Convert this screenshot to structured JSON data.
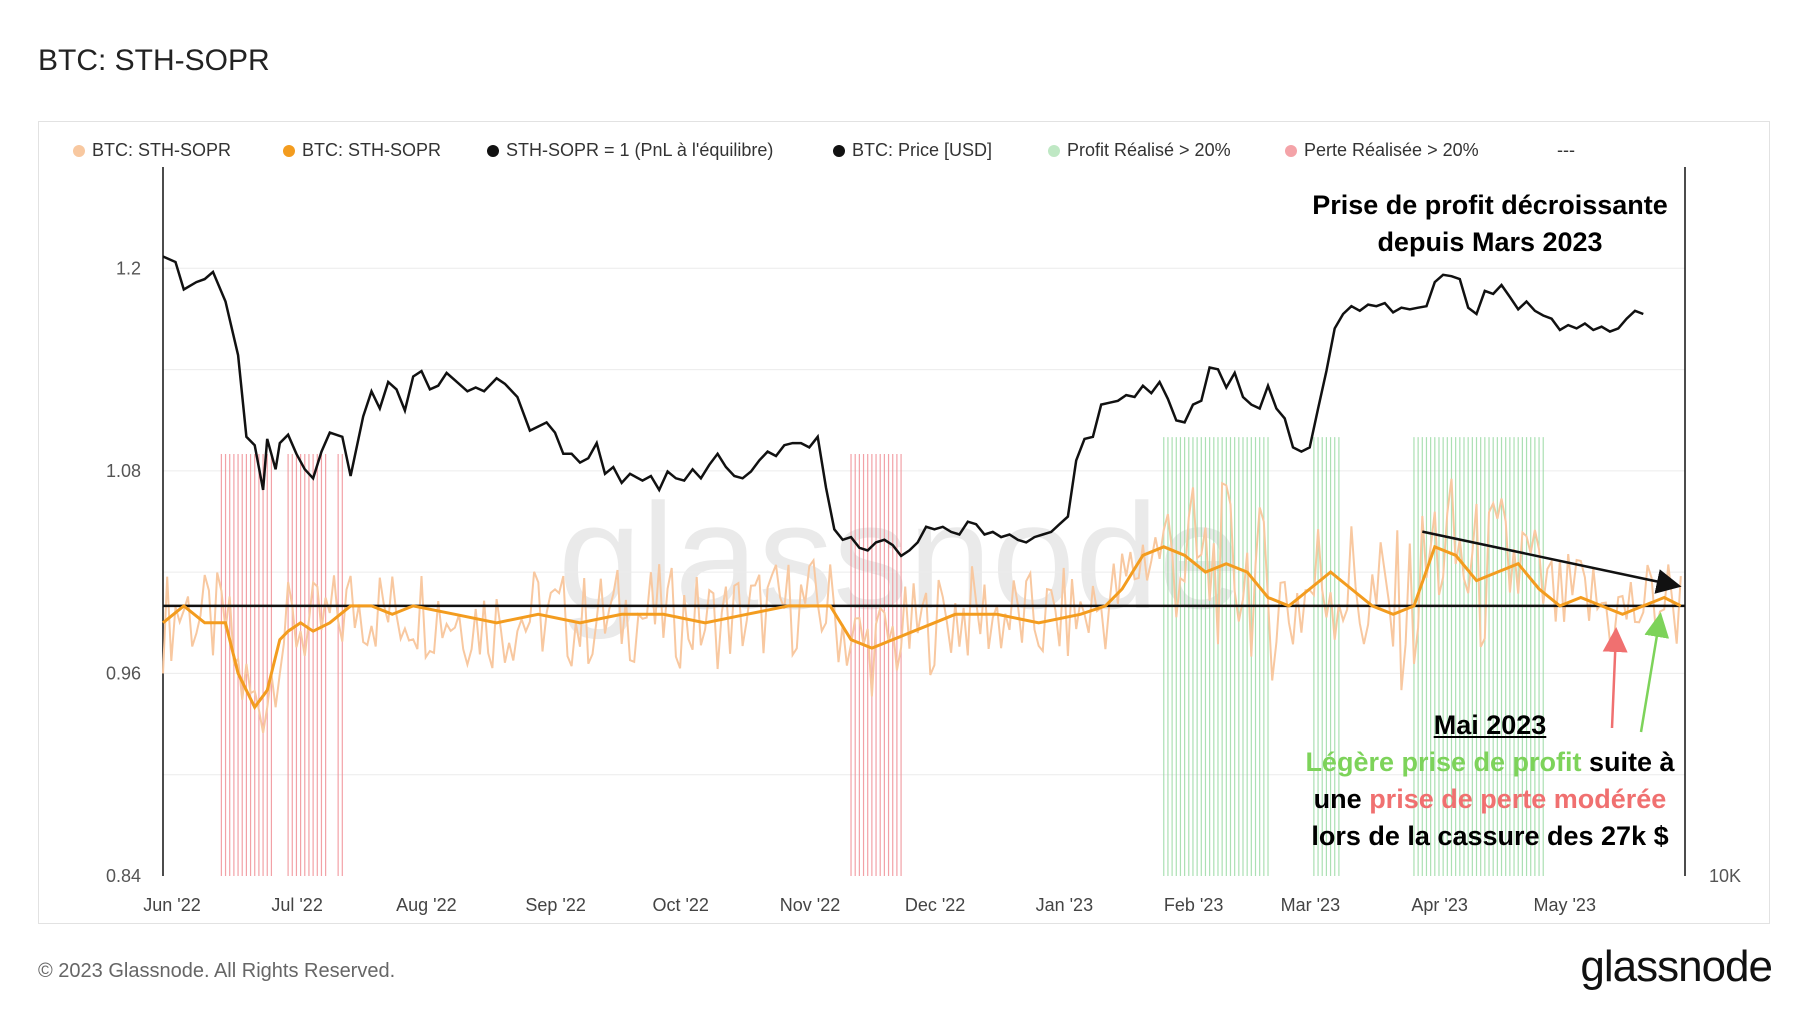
{
  "header": {
    "title": "BTC: STH-SOPR"
  },
  "legend": [
    {
      "label": "BTC: STH-SOPR",
      "color": "#f8c8a0"
    },
    {
      "label": "BTC: STH-SOPR",
      "color": "#f39c1f"
    },
    {
      "label": "STH-SOPR = 1 (PnL à l'équilibre)",
      "color": "#111111"
    },
    {
      "label": "BTC: Price [USD]",
      "color": "#111111"
    },
    {
      "label": "Profit Réalisé > 20%",
      "color": "#bfe8c4"
    },
    {
      "label": "Perte Réalisée > 20%",
      "color": "#f4a3a8"
    },
    {
      "label": "---",
      "color": ""
    }
  ],
  "annotations": {
    "top_line1": "Prise de profit décroissante",
    "top_line2": "depuis Mars 2023",
    "may_title": "Mai 2023",
    "line1_green": "Légère prise de profit",
    "line1_black": " suite à",
    "line2_black": "une ",
    "line2_red": "prise de perte modérée",
    "line3": "lors de la cassure des 27k $"
  },
  "colors": {
    "sopr_raw": "#f8c8a0",
    "sopr_smooth": "#f39c1f",
    "price": "#111111",
    "profit_band": "#8fd69a",
    "loss_band": "#f08a91",
    "annotation_green": "#7dd35a",
    "annotation_red": "#f07070"
  },
  "watermark": "glassnode",
  "footer": {
    "copyright": "© 2023 Glassnode. All Rights Reserved.",
    "logo": "glassnode"
  },
  "chart_data": {
    "type": "line",
    "title": "BTC: STH-SOPR",
    "y_left": {
      "ticks": [
        0.84,
        0.96,
        1.08,
        1.2
      ],
      "range": [
        0.84,
        1.26
      ]
    },
    "y_right": {
      "ticks_labeled": [
        "10K"
      ]
    },
    "x_labels": [
      "Jun '22",
      "Jul '22",
      "Aug '22",
      "Sep '22",
      "Oct '22",
      "Nov '22",
      "Dec '22",
      "Jan '23",
      "Feb '23",
      "Mar '23",
      "Apr '23",
      "May '23"
    ],
    "x_range_days": [
      0,
      365
    ],
    "reference_line": {
      "label": "STH-SOPR = 1 (PnL à l'équilibre)",
      "value": 1.0
    },
    "series": [
      {
        "name": "BTC: Price [USD] (approx, USD)",
        "day": [
          0,
          3,
          5,
          8,
          10,
          12,
          15,
          18,
          20,
          22,
          24,
          25,
          27,
          28,
          30,
          32,
          34,
          36,
          38,
          40,
          43,
          45,
          48,
          50,
          52,
          54,
          56,
          58,
          60,
          62,
          64,
          66,
          68,
          70,
          73,
          75,
          77,
          80,
          82,
          85,
          88,
          90,
          92,
          94,
          96,
          98,
          100,
          102,
          104,
          106,
          108,
          110,
          112,
          115,
          117,
          119,
          121,
          123,
          125,
          127,
          129,
          131,
          133,
          135,
          137,
          139,
          141,
          143,
          145,
          147,
          149,
          151,
          153,
          155,
          157,
          159,
          161,
          163,
          165,
          167,
          169,
          171,
          173,
          175,
          177,
          179,
          181,
          183,
          185,
          187,
          189,
          191,
          193,
          195,
          197,
          199,
          201,
          203,
          205,
          207,
          209,
          211,
          213,
          215,
          217,
          219,
          221,
          223,
          225,
          227,
          229,
          231,
          233,
          235,
          237,
          239,
          241,
          243,
          245,
          247,
          249,
          251,
          253,
          255,
          257,
          259,
          261,
          263,
          265,
          267,
          269,
          271,
          273,
          275,
          277,
          279,
          281,
          283,
          285,
          287,
          289,
          291,
          293,
          295,
          297,
          299,
          301,
          303,
          305,
          307,
          309,
          311,
          313,
          315,
          317,
          319,
          321,
          323,
          325,
          327,
          329,
          331,
          333,
          335,
          337,
          339,
          341,
          343,
          345,
          347,
          349,
          351,
          353,
          355,
          357,
          359,
          361,
          363,
          364
        ],
        "price": [
          31700,
          31300,
          29400,
          29900,
          30100,
          30600,
          28600,
          25300,
          21000,
          20600,
          18600,
          20900,
          19500,
          20700,
          21100,
          20200,
          19500,
          19100,
          20300,
          21200,
          21000,
          19200,
          22000,
          23300,
          22400,
          23800,
          23400,
          22300,
          24100,
          24400,
          23400,
          23600,
          24300,
          23900,
          23300,
          23500,
          23300,
          24000,
          23700,
          23000,
          21300,
          21500,
          21700,
          21200,
          20200,
          20200,
          19800,
          20000,
          20700,
          19300,
          19600,
          18900,
          19300,
          19000,
          19200,
          18600,
          19400,
          19100,
          19000,
          19500,
          19100,
          19700,
          20200,
          19600,
          19200,
          19100,
          19400,
          19900,
          20300,
          20100,
          20600,
          20700,
          20700,
          20500,
          21000,
          18700,
          17000,
          16600,
          16700,
          16300,
          16200,
          16500,
          16600,
          16400,
          16000,
          16200,
          16500,
          17100,
          17000,
          17100,
          16900,
          16800,
          17300,
          17200,
          16800,
          16900,
          16700,
          16800,
          16600,
          16500,
          16700,
          16800,
          16900,
          17200,
          17500,
          19900,
          20900,
          21000,
          22600,
          22700,
          22800,
          23100,
          23000,
          23600,
          23200,
          23800,
          22900,
          21800,
          21700,
          22600,
          22800,
          24600,
          24500,
          23500,
          24300,
          23000,
          22600,
          22400,
          23600,
          22400,
          21900,
          20500,
          20300,
          20500,
          22400,
          24400,
          26900,
          27800,
          28300,
          28000,
          28400,
          28300,
          28500,
          27900,
          28200,
          28100,
          28200,
          28300,
          29900,
          30400,
          30300,
          30100,
          28200,
          27800,
          29300,
          29100,
          29700,
          28900,
          28100,
          28600,
          28000,
          27700,
          27500,
          26800,
          27100,
          26900,
          27200,
          26800,
          27000,
          26700,
          26900,
          27500,
          28000,
          27800
        ],
        "note": "right axis, log scale"
      },
      {
        "name": "BTC: STH-SOPR (7d smoothed, approx)",
        "day": [
          0,
          5,
          10,
          15,
          18,
          20,
          22,
          25,
          28,
          30,
          33,
          36,
          40,
          45,
          50,
          55,
          60,
          70,
          80,
          90,
          100,
          110,
          120,
          130,
          140,
          150,
          160,
          165,
          170,
          175,
          180,
          185,
          190,
          200,
          210,
          220,
          226,
          230,
          235,
          240,
          245,
          250,
          255,
          260,
          265,
          270,
          275,
          280,
          285,
          290,
          295,
          300,
          305,
          310,
          315,
          320,
          325,
          330,
          335,
          340,
          345,
          350,
          355,
          360,
          364
        ],
        "value": [
          0.99,
          1.0,
          0.99,
          0.99,
          0.96,
          0.95,
          0.94,
          0.95,
          0.98,
          0.985,
          0.99,
          0.985,
          0.99,
          1.0,
          1.0,
          0.995,
          1.0,
          0.995,
          0.99,
          0.995,
          0.99,
          0.995,
          0.995,
          0.99,
          0.995,
          1.0,
          1.0,
          0.98,
          0.975,
          0.98,
          0.985,
          0.99,
          0.995,
          0.995,
          0.99,
          0.995,
          1.0,
          1.01,
          1.03,
          1.035,
          1.03,
          1.02,
          1.025,
          1.02,
          1.005,
          1.0,
          1.01,
          1.02,
          1.01,
          1.0,
          0.995,
          1.0,
          1.035,
          1.03,
          1.015,
          1.02,
          1.025,
          1.01,
          1.0,
          1.005,
          1.0,
          0.995,
          1.0,
          1.005,
          1.0
        ]
      }
    ],
    "trend_arrow": {
      "from_day": 302,
      "from_value": 1.044,
      "to_day": 363,
      "to_value": 1.012
    },
    "profit_bands_days": [
      [
        240,
        265
      ],
      [
        276,
        282
      ],
      [
        300,
        331
      ]
    ],
    "loss_bands_days": [
      [
        14,
        26
      ],
      [
        30,
        39
      ],
      [
        42,
        43
      ],
      [
        165,
        177
      ]
    ]
  }
}
